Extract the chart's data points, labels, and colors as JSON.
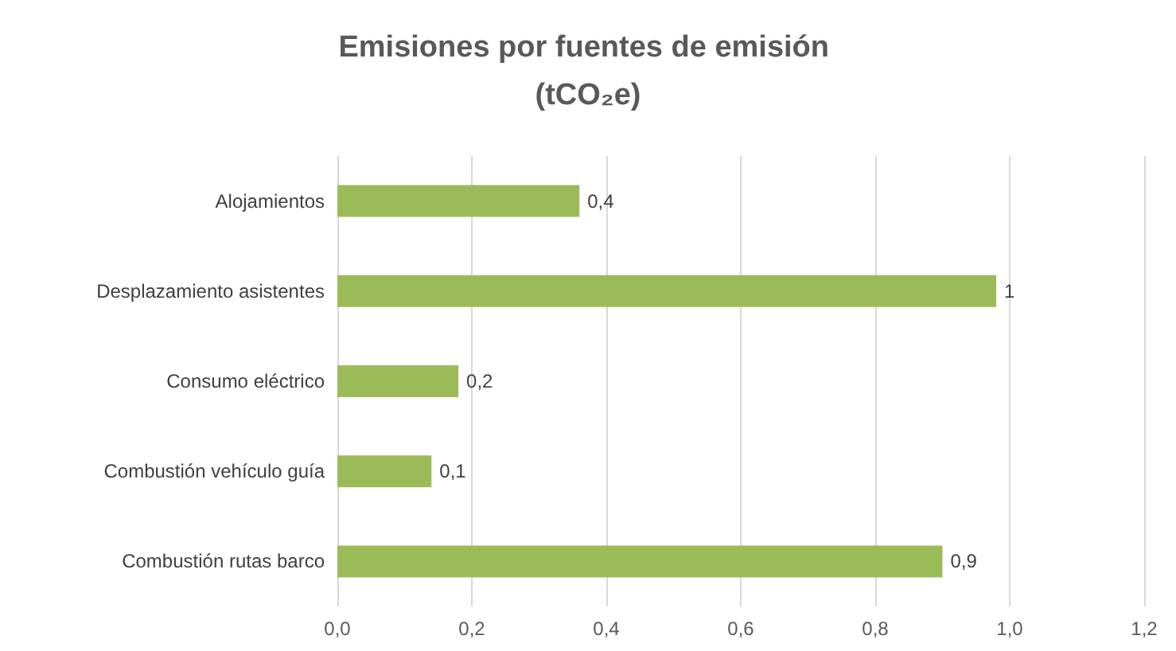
{
  "chart_data": {
    "type": "bar",
    "orientation": "horizontal",
    "title": "Emisiones por fuentes de emisión (tCO₂e)",
    "categories": [
      "Alojamientos",
      "Desplazamiento asistentes",
      "Consumo eléctrico",
      "Combustión vehículo guía",
      "Combustión rutas barco"
    ],
    "values": [
      0.36,
      0.98,
      0.18,
      0.14,
      0.9
    ],
    "value_labels": [
      "0,4",
      "1",
      "0,2",
      "0,1",
      "0,9"
    ],
    "color": "#9bbb59",
    "xlim": [
      0,
      1.2
    ],
    "xticks": [
      {
        "value": 0,
        "label": "0,0"
      },
      {
        "value": 0.2,
        "label": "0,2"
      },
      {
        "value": 0.4,
        "label": "0,4"
      },
      {
        "value": 0.6,
        "label": "0,6"
      },
      {
        "value": 0.8,
        "label": "0,8"
      },
      {
        "value": 1,
        "label": "1,0"
      },
      {
        "value": 1.2,
        "label": "1,2"
      }
    ],
    "grid": "x"
  }
}
